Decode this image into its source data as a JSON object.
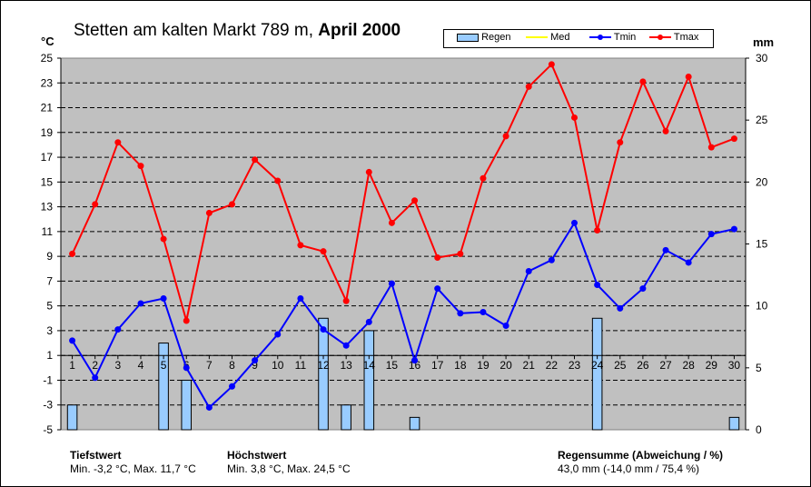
{
  "title": {
    "station": "Stetten am kalten Markt 789 m,",
    "month": "April 2000"
  },
  "units": {
    "left": "°C",
    "right": "mm"
  },
  "legend": [
    {
      "label": "Regen",
      "color": "#99ccff",
      "kind": "bar"
    },
    {
      "label": "Med",
      "color": "#ffff00",
      "kind": "line"
    },
    {
      "label": "Tmin",
      "color": "#0000ff",
      "kind": "line"
    },
    {
      "label": "Tmax",
      "color": "#ff0000",
      "kind": "line"
    }
  ],
  "footer": {
    "low_heading": "Tiefstwert",
    "low_text": "Min. -3,2 °C, Max. 11,7 °C",
    "high_heading": "Höchstwert",
    "high_text": "Min. 3,8 °C, Max. 24,5 °C",
    "rain_heading": "Regensumme (Abweichung / %)",
    "rain_text": "43,0 mm (-14,0 mm / 75,4 %)"
  },
  "chart_data": {
    "type": "line",
    "categories": [
      "1",
      "2",
      "3",
      "4",
      "5",
      "6",
      "7",
      "8",
      "9",
      "10",
      "11",
      "12",
      "13",
      "14",
      "15",
      "16",
      "17",
      "18",
      "19",
      "20",
      "21",
      "22",
      "23",
      "24",
      "25",
      "26",
      "27",
      "28",
      "29",
      "30"
    ],
    "y_left": {
      "min": -5,
      "max": 25,
      "ticks": [
        -5,
        -3,
        -1,
        1,
        3,
        5,
        7,
        9,
        11,
        13,
        15,
        17,
        19,
        21,
        23,
        25
      ]
    },
    "y_right": {
      "min": 0,
      "max": 30,
      "ticks": [
        0,
        5,
        10,
        15,
        20,
        25,
        30
      ]
    },
    "grid": true,
    "series": [
      {
        "name": "Regen",
        "axis": "right",
        "kind": "bar",
        "color": "#99ccff",
        "values": [
          2,
          0,
          0,
          0,
          7,
          4,
          0,
          0,
          0,
          0,
          0,
          9,
          2,
          8,
          0,
          1,
          0,
          0,
          0,
          0,
          0,
          0,
          0,
          9,
          0,
          0,
          0,
          0,
          0,
          1
        ]
      },
      {
        "name": "Tmin",
        "axis": "left",
        "kind": "line",
        "color": "#0000ff",
        "values": [
          2.2,
          -0.8,
          3.1,
          5.2,
          5.6,
          0.0,
          -3.2,
          -1.5,
          0.6,
          2.7,
          5.6,
          3.1,
          1.8,
          3.7,
          6.8,
          0.6,
          6.4,
          4.4,
          4.5,
          3.4,
          7.8,
          8.7,
          11.7,
          6.7,
          4.8,
          6.4,
          9.5,
          8.5,
          10.8,
          11.2
        ]
      },
      {
        "name": "Tmax",
        "axis": "left",
        "kind": "line",
        "color": "#ff0000",
        "values": [
          9.2,
          13.2,
          18.2,
          16.3,
          10.4,
          3.8,
          12.5,
          13.2,
          16.8,
          15.1,
          9.9,
          9.4,
          5.4,
          15.8,
          11.7,
          13.5,
          8.9,
          9.2,
          15.3,
          18.7,
          22.7,
          24.5,
          20.2,
          11.1,
          18.2,
          23.1,
          19.1,
          23.5,
          17.8,
          18.5
        ]
      }
    ]
  }
}
